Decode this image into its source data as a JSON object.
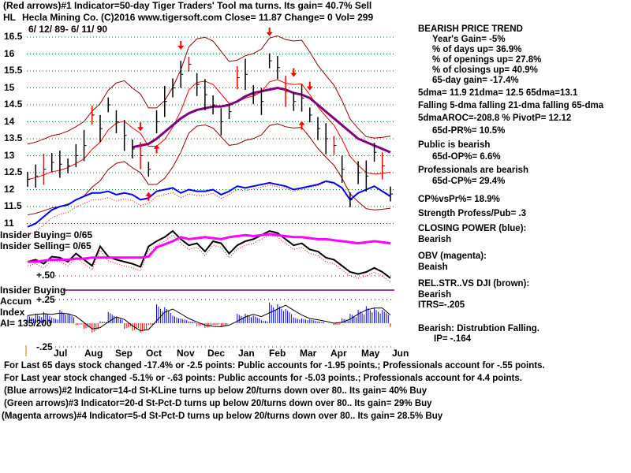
{
  "header": {
    "line1": "(Red arrows)#1 Indicator=50-day Tiger Traders' Tool ma turns. Its gain= 40.7% Sell",
    "symbol": "HL",
    "line2": "Hecla Mining Co. (C)2016 www.tigersoft.com     Close=  11.87  Change= 0 Vol= 299",
    "date_range": "6/ 12/ 89- 6/ 11/ 90"
  },
  "right_panel": {
    "trend": "BEARISH PRICE TREND",
    "year_gain": "Year's Gain= -5%",
    "days_up": "% of days up= 36.9%",
    "openings_up": "% of openings up= 27.8%",
    "closings_up": "% of closings up= 40.9%",
    "gain65": "65-day gain= -17.4%",
    "dma": "5dma= 11.9 21dma= 12.5 65dma=13.1",
    "falling": "Falling 5-dma  falling 21-dma  falling 65-dma",
    "aroc": "5dmaAROC=-208.8 %  PivotP= 12.12",
    "pr": "65d-PR%= 10.5%",
    "public": "Public is bearish",
    "op": "65d-OP%= 6.6%",
    "pros": "Professionals are bearish",
    "cp": "65d-CP%= 29.4%",
    "cpvspr": "CP%vsPr%=  18.9%",
    "strength": "Strength Profess/Pub= .3",
    "closing_power": "CLOSING POWER (blue):",
    "closing_power_val": "Bearish",
    "obv": "OBV (magenta):",
    "obv_val": "Beaish",
    "relstr": "REL.STR..VS DJI (brown):",
    "relstr_val": "Bearish",
    "itrs": "ITRS=-.205",
    "distribution": "Bearish: Distrubtion Falling.",
    "ip": "IP= -.164"
  },
  "left_labels": {
    "insider_buying_count": "Insider Buying= 0/65",
    "insider_selling_count": "Insider Selling= 0/65",
    "plus50": "+.50",
    "insider_buying": "Insider Buying",
    "accum": "Accum",
    "plus25": "+.25",
    "index": "Index",
    "ai": "AI= 135/200",
    "minus25": "-.25"
  },
  "footer": [
    "For Last 65 days stock changed -17.4% or -2.5 points:  Public accounts for -1.95 points.;  Professionals account for -.55 points.",
    "For Last year stock changed -5.1% or -.63 points:  Public accounts for -5.03 points.;  Professionals account for  4.4 points.",
    "(Blue arrows)#2 Indicator=14-d St-KLine turns up below 20/turns down over 80.. Its gain= 40% Buy",
    "(Green arrows)#3 Indicator=20-d St-Pct-D turns up below 20/turns down over 80.. Its gain= 29% Buy",
    "(Magenta arrows)#4 Indicator=5-d St-Pct-D turns up below 20/turns down over 80.. Its gain= 28.5% Buy"
  ],
  "colors": {
    "price": "#000000",
    "band": "#8b0000",
    "ma65": "#800080",
    "closing_power": "#0000ff",
    "obv": "#ff00ff",
    "accum_pos": "#0000ff",
    "accum_neg": "#ff0000",
    "grid": "#008000"
  },
  "chart_data": {
    "type": "line",
    "title": "Hecla Mining Co.",
    "ylim": [
      11,
      16.5
    ],
    "yticks": [
      "16.5",
      "16",
      "15.5",
      "15",
      "14.5",
      "14",
      "13.5",
      "13",
      "12.5",
      "12",
      "11.5",
      "11"
    ],
    "ytick_values": [
      16.5,
      16,
      15.5,
      15,
      14.5,
      14,
      13.5,
      13,
      12.5,
      12,
      11.5,
      11
    ],
    "months": [
      "Jul",
      "Aug",
      "Sep",
      "Oct",
      "Nov",
      "Dec",
      "Jan",
      "Feb",
      "Mar",
      "Apr",
      "May",
      "Jun"
    ],
    "close": [
      12.3,
      12.4,
      12.6,
      12.8,
      12.75,
      12.7,
      13.0,
      13.3,
      14.2,
      13.8,
      14.5,
      14.0,
      13.6,
      13.2,
      13.0,
      12.6,
      14.0,
      14.6,
      15.0,
      15.4,
      15.7,
      15.1,
      14.8,
      14.5,
      14.0,
      14.3,
      15.3,
      15.4,
      14.8,
      14.6,
      15.8,
      15.6,
      14.9,
      14.6,
      14.7,
      14.2,
      13.8,
      13.5,
      13.3,
      12.6,
      11.7,
      12.5,
      12.4,
      13.1,
      12.7,
      11.87
    ],
    "ma65": [
      null,
      null,
      null,
      null,
      null,
      null,
      null,
      null,
      null,
      null,
      null,
      null,
      null,
      13.25,
      13.3,
      13.35,
      13.5,
      13.7,
      13.9,
      14.1,
      14.25,
      14.35,
      14.4,
      14.45,
      14.45,
      14.5,
      14.6,
      14.75,
      14.85,
      14.9,
      14.95,
      15.0,
      14.95,
      14.85,
      14.8,
      14.7,
      14.5,
      14.3,
      14.1,
      13.9,
      13.7,
      13.5,
      13.4,
      13.3,
      13.2,
      13.1
    ],
    "closing_power": [
      10.9,
      11.0,
      11.2,
      11.4,
      11.5,
      11.55,
      11.7,
      11.8,
      11.9,
      11.9,
      11.95,
      11.85,
      11.9,
      11.85,
      11.7,
      11.75,
      11.95,
      12.0,
      12.05,
      11.9,
      12.0,
      11.95,
      11.95,
      12.0,
      11.85,
      11.95,
      12.1,
      12.05,
      12.1,
      12.15,
      12.2,
      12.15,
      12.1,
      12.0,
      12.05,
      12.1,
      12.15,
      12.25,
      12.2,
      12.05,
      11.7,
      11.9,
      12.0,
      12.1,
      11.95,
      11.8
    ],
    "rel_strength": [
      40,
      42,
      38,
      45,
      44,
      40,
      48,
      42,
      36,
      55,
      45,
      42,
      40,
      38,
      35,
      55,
      60,
      64,
      70,
      62,
      56,
      58,
      50,
      60,
      58,
      48,
      56,
      60,
      62,
      66,
      70,
      68,
      62,
      56,
      58,
      52,
      50,
      44,
      42,
      36,
      30,
      28,
      30,
      34,
      30,
      24
    ],
    "obv": [
      40,
      40,
      41,
      42,
      42,
      42,
      43,
      43,
      44,
      44,
      44,
      44,
      44,
      44,
      44,
      45,
      54,
      57,
      60,
      64,
      62,
      63,
      64,
      63,
      62,
      64,
      65,
      66,
      65,
      66,
      67,
      66,
      65,
      64,
      64,
      63,
      62,
      62,
      61,
      60,
      59,
      58,
      59,
      60,
      59,
      58
    ],
    "accum_index": [
      0.08,
      0.1,
      0.12,
      0.06,
      0.14,
      0.1,
      -0.02,
      -0.06,
      -0.1,
      0.02,
      0.12,
      0.06,
      -0.06,
      -0.08,
      -0.1,
      -0.02,
      0.2,
      0.17,
      0.08,
      0.05,
      0.02,
      -0.03,
      -0.05,
      -0.02,
      -0.04,
      0.0,
      0.1,
      0.1,
      0.08,
      0.03,
      0.22,
      0.2,
      0.15,
      0.06,
      0.05,
      0.04,
      0.02,
      0.0,
      -0.02,
      0.05,
      0.1,
      0.14,
      0.18,
      0.16,
      0.14,
      -0.04
    ]
  }
}
